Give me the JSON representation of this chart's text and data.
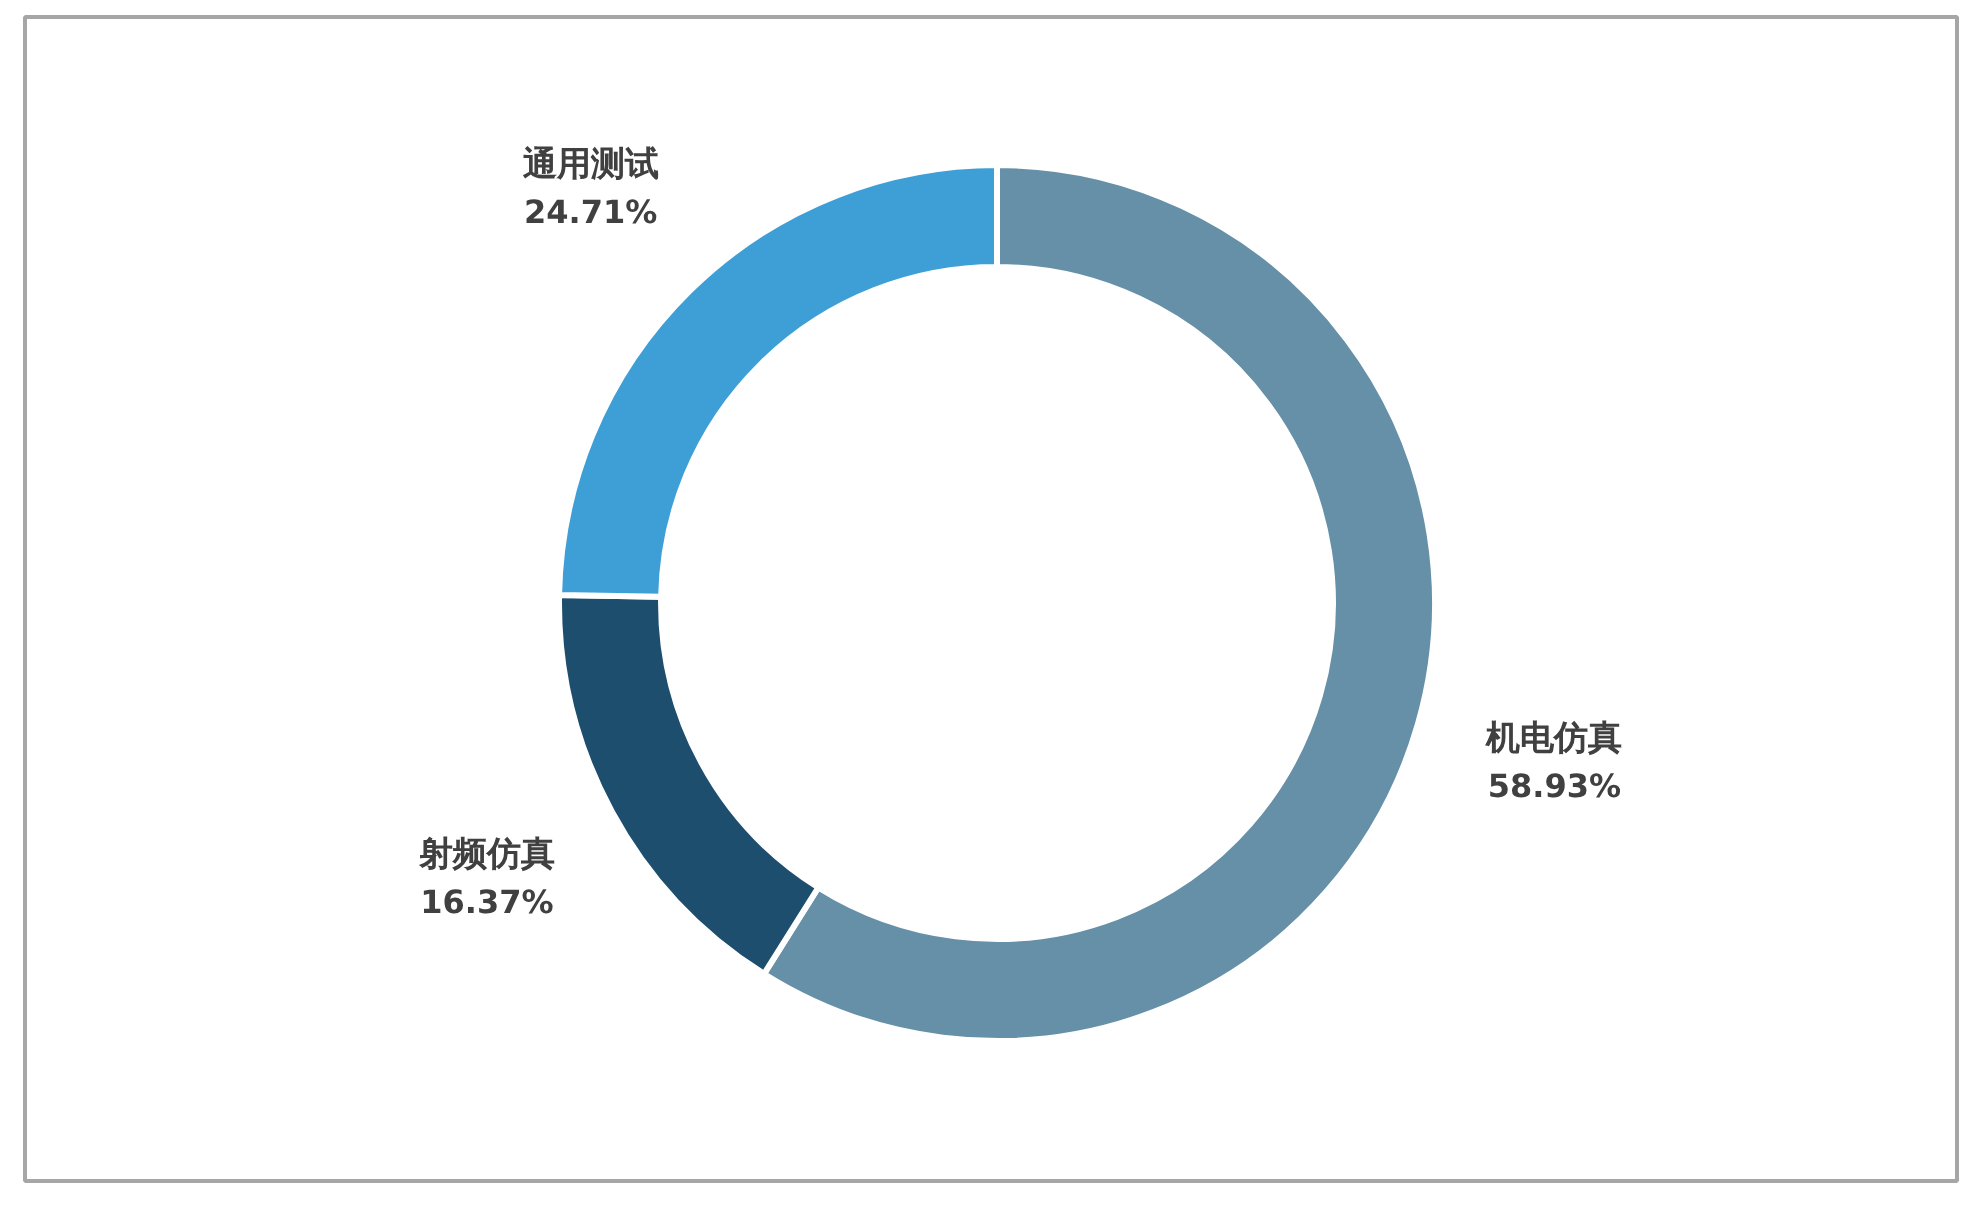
{
  "chart_data": {
    "type": "donut",
    "categories": [
      "机电仿真",
      "射频仿真",
      "通用测试"
    ],
    "values": [
      58.93,
      16.37,
      24.71
    ],
    "colors": [
      "#6590a8",
      "#1d4e6e",
      "#3d9fd6"
    ],
    "value_labels": [
      "58.93%",
      "16.37%",
      "24.71%"
    ]
  }
}
